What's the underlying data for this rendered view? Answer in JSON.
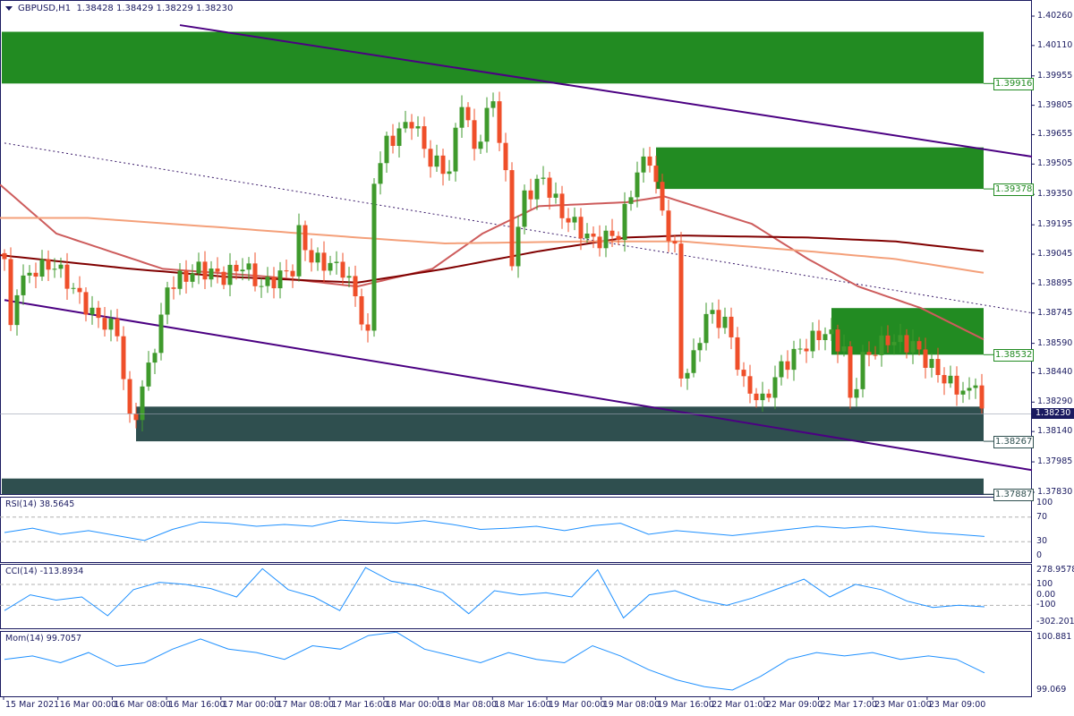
{
  "header": {
    "symbol": "GBPUSD,H1",
    "ohlc": "1.38428 1.38429 1.38229 1.38230"
  },
  "colors": {
    "bull": "#3f9a2c",
    "bear": "#ef4f2a",
    "zone_green": "#228b22",
    "zone_dark": "#2f4f4f",
    "channel": "#4b0082",
    "ma_fast": "#cd5c5c",
    "ma_mid": "#800000",
    "ma_slow": "#f4a07a",
    "indicator": "#1e90ff",
    "axis": "#1a1a60"
  },
  "chart_data": [
    {
      "type": "candlestick",
      "title": "GBPUSD,H1",
      "ylim": [
        1.3778,
        1.403
      ],
      "y_ticks": [
        "1.40260",
        "1.40110",
        "1.39955",
        "1.39805",
        "1.39655",
        "1.39505",
        "1.39350",
        "1.39195",
        "1.39045",
        "1.38895",
        "1.38745",
        "1.38590",
        "1.38440",
        "1.38290",
        "1.38140",
        "1.37985",
        "1.37830"
      ],
      "x_ticks": [
        "15 Mar 2021",
        "16 Mar 00:00",
        "16 Mar 08:00",
        "16 Mar 16:00",
        "17 Mar 00:00",
        "17 Mar 08:00",
        "17 Mar 16:00",
        "18 Mar 00:00",
        "18 Mar 08:00",
        "18 Mar 16:00",
        "19 Mar 00:00",
        "19 Mar 08:00",
        "19 Mar 16:00",
        "22 Mar 01:00",
        "22 Mar 09:00",
        "22 Mar 17:00",
        "23 Mar 01:00",
        "23 Mar 09:00"
      ],
      "candle_count": 157,
      "price_path": [
        [
          0,
          1.3902
        ],
        [
          1,
          1.3865
        ],
        [
          2,
          1.3888
        ],
        [
          5,
          1.3897
        ],
        [
          8,
          1.3899
        ],
        [
          14,
          1.3874
        ],
        [
          18,
          1.3865
        ],
        [
          20,
          1.3819
        ],
        [
          21,
          1.3824
        ],
        [
          23,
          1.3847
        ],
        [
          25,
          1.387
        ],
        [
          26,
          1.3888
        ],
        [
          31,
          1.3897
        ],
        [
          35,
          1.3893
        ],
        [
          38,
          1.3899
        ],
        [
          41,
          1.3888
        ],
        [
          46,
          1.3897
        ],
        [
          47,
          1.3915
        ],
        [
          49,
          1.3902
        ],
        [
          54,
          1.3897
        ],
        [
          56,
          1.3883
        ],
        [
          58,
          1.3861
        ],
        [
          59,
          1.3943
        ],
        [
          61,
          1.3961
        ],
        [
          65,
          1.3973
        ],
        [
          68,
          1.3952
        ],
        [
          71,
          1.3947
        ],
        [
          73,
          1.3984
        ],
        [
          75,
          1.3957
        ],
        [
          78,
          1.3984
        ],
        [
          80,
          1.3943
        ],
        [
          81,
          1.3902
        ],
        [
          83,
          1.3934
        ],
        [
          86,
          1.3943
        ],
        [
          89,
          1.3925
        ],
        [
          94,
          1.3911
        ],
        [
          98,
          1.3915
        ],
        [
          101,
          1.3947
        ],
        [
          103,
          1.3954
        ],
        [
          105,
          1.3925
        ],
        [
          107,
          1.3906
        ],
        [
          108,
          1.3842
        ],
        [
          110,
          1.3851
        ],
        [
          112,
          1.3874
        ],
        [
          115,
          1.387
        ],
        [
          116,
          1.3861
        ],
        [
          118,
          1.3838
        ],
        [
          121,
          1.3829
        ],
        [
          124,
          1.3847
        ],
        [
          127,
          1.3856
        ],
        [
          129,
          1.3861
        ],
        [
          131,
          1.3865
        ],
        [
          134,
          1.3856
        ],
        [
          135,
          1.3829
        ],
        [
          137,
          1.3851
        ],
        [
          141,
          1.3861
        ],
        [
          145,
          1.3858
        ],
        [
          148,
          1.3847
        ],
        [
          151,
          1.3838
        ],
        [
          154,
          1.3833
        ],
        [
          155,
          1.3842
        ],
        [
          156,
          1.3823
        ]
      ],
      "current_price": "1.38230",
      "moving_averages": [
        {
          "name": "fast",
          "points": [
            [
              0,
              1.394
            ],
            [
              9,
              1.3915
            ],
            [
              26,
              1.3897
            ],
            [
              43,
              1.3893
            ],
            [
              57,
              1.3888
            ],
            [
              69,
              1.3897
            ],
            [
              77,
              1.3915
            ],
            [
              86,
              1.3929
            ],
            [
              100,
              1.3931
            ],
            [
              106,
              1.3934
            ],
            [
              111,
              1.3929
            ],
            [
              120,
              1.392
            ],
            [
              129,
              1.3902
            ],
            [
              137,
              1.3888
            ],
            [
              147,
              1.3877
            ],
            [
              157,
              1.3861
            ]
          ]
        },
        {
          "name": "mid",
          "points": [
            [
              0,
              1.3904
            ],
            [
              21,
              1.3897
            ],
            [
              36,
              1.3893
            ],
            [
              57,
              1.389
            ],
            [
              71,
              1.3897
            ],
            [
              86,
              1.3906
            ],
            [
              100,
              1.3913
            ],
            [
              109,
              1.3914
            ],
            [
              129,
              1.3913
            ],
            [
              143,
              1.3911
            ],
            [
              157,
              1.3906
            ]
          ]
        },
        {
          "name": "slow",
          "points": [
            [
              0,
              1.3923
            ],
            [
              14,
              1.3923
            ],
            [
              36,
              1.3918
            ],
            [
              57,
              1.3913
            ],
            [
              71,
              1.391
            ],
            [
              93,
              1.3911
            ],
            [
              109,
              1.3911
            ],
            [
              129,
              1.3906
            ],
            [
              143,
              1.3902
            ],
            [
              157,
              1.3895
            ]
          ]
        }
      ],
      "zones": [
        {
          "label": "1.39916",
          "top": 1.4018,
          "bottom": 1.39916,
          "from": 0,
          "color": "green"
        },
        {
          "label": "1.39378",
          "top": 1.3959,
          "bottom": 1.39378,
          "from": 104,
          "color": "green"
        },
        {
          "label": "1.38532",
          "top": 1.3877,
          "bottom": 1.38532,
          "from": 132,
          "color": "green"
        },
        {
          "label": "1.38267",
          "top": 1.38267,
          "bottom": 1.3809,
          "from": 21,
          "color": "dark"
        },
        {
          "label": "1.37887",
          "top": 1.379,
          "bottom": 1.3782,
          "from": 0,
          "color": "dark"
        }
      ],
      "trendlines": [
        {
          "name": "channel-upper",
          "from": [
            28,
            1.40214
          ],
          "to": [
            164,
            1.39543
          ],
          "style": "solid"
        },
        {
          "name": "channel-lower",
          "from": [
            0,
            1.38811
          ],
          "to": [
            164,
            1.37943
          ],
          "style": "solid"
        },
        {
          "name": "channel-mid",
          "from": [
            0,
            1.39612
          ],
          "to": [
            164,
            1.38745
          ],
          "style": "dotted"
        }
      ]
    },
    {
      "type": "line",
      "title": "RSI(14) 38.5645",
      "ylim": [
        0,
        100
      ],
      "y_ticks": [
        "100",
        "70",
        "30",
        "0"
      ],
      "levels": [
        70,
        30
      ],
      "values": [
        45,
        52,
        42,
        48,
        40,
        32,
        50,
        62,
        60,
        55,
        58,
        55,
        65,
        62,
        60,
        64,
        58,
        50,
        52,
        55,
        48,
        56,
        60,
        42,
        48,
        44,
        40,
        45,
        50,
        55,
        52,
        55,
        50,
        45,
        42,
        38.5645
      ]
    },
    {
      "type": "line",
      "title": "CCI(14) -113.8934",
      "ylim": [
        -302.2013,
        278.9578
      ],
      "y_ticks": [
        "278.9578",
        "100",
        "0.00",
        "-100",
        "-302.2013"
      ],
      "levels": [
        100,
        -100
      ],
      "values": [
        -150,
        0,
        -50,
        -20,
        -200,
        50,
        120,
        100,
        60,
        -20,
        250,
        50,
        -20,
        -150,
        260,
        130,
        90,
        20,
        -180,
        40,
        0,
        20,
        -20,
        240,
        -220,
        0,
        40,
        -50,
        -100,
        -30,
        60,
        150,
        -20,
        100,
        50,
        -60,
        -120,
        -100,
        -113.8934
      ]
    },
    {
      "type": "line",
      "title": "Mom(14) 99.7057",
      "ylim": [
        99.069,
        100.881
      ],
      "y_ticks": [
        "100.881",
        "99.069"
      ],
      "levels": [],
      "values": [
        100.1,
        100.2,
        100.0,
        100.3,
        99.9,
        100.0,
        100.4,
        100.7,
        100.4,
        100.3,
        100.1,
        100.5,
        100.4,
        100.8,
        100.9,
        100.4,
        100.2,
        100.0,
        100.3,
        100.1,
        100.0,
        100.5,
        100.2,
        99.8,
        99.5,
        99.3,
        99.2,
        99.6,
        100.1,
        100.3,
        100.2,
        100.3,
        100.1,
        100.2,
        100.1,
        99.7057
      ]
    }
  ]
}
